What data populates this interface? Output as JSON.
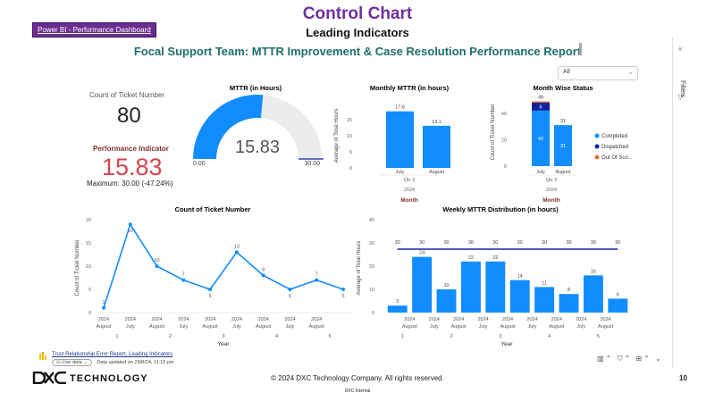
{
  "slide": {
    "title": "Control Chart",
    "subtitle": "Leading Indicators",
    "pbi_link": "Power BI - Performance Dashboard",
    "copyright": "© 2024 DXC Technology Company. All rights reserved.",
    "classification": "DXC Internal",
    "page_number": "10",
    "brand_text": "TECHNOLOGY"
  },
  "report": {
    "heading": "Focal Support Team: MTTR Improvement & Case Resolution Performance Report",
    "slicer_value": "All",
    "filters_label": "Filters"
  },
  "kpi": {
    "count_label": "Count of Ticket Number",
    "count_value": "80",
    "perf_label": "Performance Indicator",
    "perf_value": "15.83",
    "perf_max": "Maximum: 30.00 (-47.24%)"
  },
  "footer": {
    "report_link": "Trust Relationship Error Report, Leading Indicators",
    "live_label": "Live data",
    "updated": "Data updated on 29/8/24, 11:19 pm"
  },
  "colors": {
    "accent": "#118dff",
    "navy": "#12239e",
    "orange": "#e66c37",
    "title_purple": "#7030a0",
    "kpi_red": "#d64550"
  },
  "chart_data": [
    {
      "id": "gauge",
      "type": "gauge",
      "title": "MTTR (in Hours)",
      "value": 15.83,
      "min": 0,
      "max": 30,
      "min_label": "0.00",
      "max_label": "30.00",
      "value_label": "15.83"
    },
    {
      "id": "monthly_mttr",
      "type": "bar",
      "title": "Monthly MTTR (in hours)",
      "categories": [
        "July",
        "August"
      ],
      "values": [
        17.6,
        13.1
      ],
      "value_labels": [
        "17.6",
        "13.1"
      ],
      "ylabel": "Average of Total Hours",
      "xlabel": "Month",
      "group_labels": [
        "Qtr 3",
        "2024"
      ],
      "ylim": [
        0,
        20
      ],
      "yticks": [
        0,
        5,
        10,
        15
      ],
      "ytick_labels": [
        "0",
        "5",
        "10",
        "15"
      ]
    },
    {
      "id": "month_status",
      "type": "bar",
      "title": "Month Wise Status",
      "categories": [
        "July",
        "August"
      ],
      "series": [
        {
          "name": "Completed",
          "values": [
            42,
            31
          ],
          "labels": [
            "42",
            "31"
          ]
        },
        {
          "name": "Dispatched",
          "values": [
            6,
            0
          ],
          "labels": [
            "6",
            ""
          ]
        },
        {
          "name": "Out Of Sco...",
          "values": [
            1,
            0
          ],
          "labels": [
            "",
            ""
          ]
        }
      ],
      "totals": [
        49,
        31
      ],
      "total_labels": [
        "49",
        "31"
      ],
      "ylabel": "Count of Ticket Number",
      "xlabel": "Month",
      "group_labels": [
        "Qtr 3",
        "2024"
      ],
      "ylim": [
        0,
        50
      ],
      "yticks": [
        0,
        20,
        40
      ],
      "ytick_labels": [
        "0",
        "20",
        "40"
      ],
      "legend": [
        "Completed",
        "Dispatched",
        "Out Of Sco..."
      ]
    },
    {
      "id": "ticket_count_line",
      "type": "line",
      "title": "Count of Ticket Number",
      "ylabel": "Count of Ticket Number",
      "xlabel": "Year",
      "x_labels": [
        [
          "2024",
          "August"
        ],
        [
          "2024",
          "July"
        ],
        [
          "2024",
          "August"
        ],
        [
          "2024",
          "July"
        ],
        [
          "2024",
          "August"
        ],
        [
          "2024",
          "July"
        ],
        [
          "2024",
          "August"
        ],
        [
          "2024",
          "July"
        ],
        [
          "2024",
          "August"
        ]
      ],
      "week_labels": [
        "1",
        "2",
        "3",
        "4",
        "5"
      ],
      "values": [
        1,
        19,
        10,
        7,
        5,
        13,
        8,
        5,
        7,
        5
      ],
      "value_labels": [
        "1",
        "19",
        "10",
        "7",
        "5",
        "13",
        "8",
        "5",
        "7",
        "5"
      ],
      "ylim": [
        0,
        20
      ],
      "yticks": [
        0,
        5,
        10,
        15,
        20
      ],
      "ytick_labels": [
        "0",
        "5",
        "10",
        "15",
        "20"
      ]
    },
    {
      "id": "weekly_mttr",
      "type": "bar",
      "title": "Weekly MTTR Distribution (in hours)",
      "ylabel": "Average of Total Hours",
      "xlabel": "Year",
      "x_labels": [
        [
          "2024",
          "August"
        ],
        [
          "2024",
          "July"
        ],
        [
          "2024",
          "August"
        ],
        [
          "2024",
          "July"
        ],
        [
          "2024",
          "August"
        ],
        [
          "2024",
          "July"
        ],
        [
          "2024",
          "August"
        ],
        [
          "2024",
          "July"
        ],
        [
          "2024",
          "August"
        ]
      ],
      "week_labels": [
        "1",
        "2",
        "3",
        "4",
        "5"
      ],
      "values": [
        3,
        24,
        10,
        22,
        22,
        14,
        11,
        8,
        16,
        6
      ],
      "value_labels": [
        "3",
        "24",
        "10",
        "22",
        "22",
        "14",
        "11",
        "8",
        "16",
        "6"
      ],
      "target_values": [
        30,
        30,
        30,
        30,
        30,
        30,
        30,
        30,
        30,
        30
      ],
      "target_labels": [
        "30",
        "30",
        "30",
        "30",
        "30",
        "30",
        "30",
        "30",
        "30",
        "30"
      ],
      "ylim": [
        0,
        40
      ],
      "yticks": [
        0,
        10,
        20,
        30,
        40
      ],
      "ytick_labels": [
        "0",
        "10",
        "20",
        "30",
        "40"
      ]
    }
  ]
}
